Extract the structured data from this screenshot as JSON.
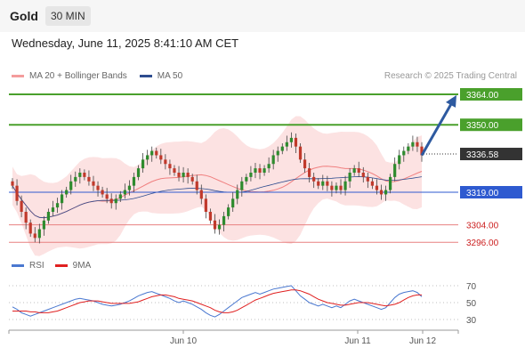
{
  "header": {
    "asset": "Gold",
    "timeframe": "30 MIN"
  },
  "datetime": "Wednesday, June 11, 2025 8:41:10 AM CET",
  "legend": {
    "ma20": {
      "label": "MA 20 + Bollinger Bands",
      "color": "#f08080"
    },
    "ma50": {
      "label": "MA 50",
      "color": "#2e4d8f"
    }
  },
  "credit": "Research © 2025 Trading Central",
  "rsi_legend": {
    "rsi": {
      "label": "RSI",
      "color": "#4a78d0"
    },
    "ma9": {
      "label": "9MA",
      "color": "#e02020"
    }
  },
  "chart_data": {
    "type": "candlestick",
    "y_range": [
      3290,
      3370
    ],
    "x_ticks": [
      "Jun 10",
      "Jun 11",
      "Jun 12"
    ],
    "current_price": "3336.58",
    "levels": [
      {
        "value": 3364.0,
        "label": "3364.00",
        "style": "resistance-green"
      },
      {
        "value": 3350.0,
        "label": "3350.00",
        "style": "resistance-green"
      },
      {
        "value": 3336.58,
        "label": "3336.58",
        "style": "current-dark"
      },
      {
        "value": 3319.0,
        "label": "3319.00",
        "style": "pivot-blue"
      },
      {
        "value": 3304.0,
        "label": "3304.00",
        "style": "support-red"
      },
      {
        "value": 3296.0,
        "label": "3296.00",
        "style": "support-red"
      }
    ],
    "closes": [
      3322,
      3315,
      3310,
      3305,
      3300,
      3298,
      3302,
      3306,
      3310,
      3312,
      3314,
      3318,
      3320,
      3324,
      3326,
      3328,
      3326,
      3324,
      3322,
      3320,
      3318,
      3316,
      3314,
      3316,
      3318,
      3320,
      3322,
      3326,
      3330,
      3334,
      3336,
      3338,
      3336,
      3334,
      3332,
      3330,
      3328,
      3326,
      3328,
      3326,
      3324,
      3320,
      3316,
      3310,
      3306,
      3302,
      3304,
      3308,
      3312,
      3316,
      3320,
      3324,
      3326,
      3328,
      3330,
      3328,
      3330,
      3332,
      3336,
      3338,
      3340,
      3342,
      3344,
      3340,
      3334,
      3330,
      3326,
      3324,
      3322,
      3324,
      3322,
      3320,
      3322,
      3320,
      3324,
      3328,
      3330,
      3328,
      3326,
      3324,
      3322,
      3320,
      3318,
      3320,
      3326,
      3332,
      3336,
      3338,
      3340,
      3342,
      3340,
      3336
    ],
    "rsi": {
      "levels": [
        70,
        50,
        30
      ],
      "range": [
        20,
        80
      ],
      "rsi": [
        45,
        42,
        38,
        36,
        34,
        36,
        38,
        40,
        42,
        44,
        46,
        48,
        50,
        52,
        54,
        55,
        54,
        53,
        52,
        50,
        48,
        47,
        46,
        47,
        48,
        50,
        52,
        55,
        58,
        60,
        62,
        63,
        61,
        59,
        57,
        55,
        52,
        50,
        52,
        50,
        48,
        45,
        42,
        38,
        35,
        33,
        36,
        40,
        44,
        48,
        52,
        56,
        58,
        60,
        62,
        60,
        62,
        64,
        66,
        67,
        68,
        69,
        70,
        64,
        58,
        54,
        50,
        48,
        46,
        48,
        46,
        44,
        46,
        44,
        48,
        52,
        54,
        52,
        50,
        48,
        46,
        44,
        42,
        44,
        50,
        56,
        60,
        62,
        63,
        64,
        62,
        57
      ],
      "ma9": [
        40,
        40,
        40,
        40,
        39,
        39,
        38,
        38,
        38,
        39,
        40,
        42,
        44,
        46,
        48,
        50,
        51,
        52,
        52,
        52,
        51,
        50,
        49,
        49,
        49,
        49,
        49,
        50,
        51,
        53,
        55,
        57,
        58,
        59,
        59,
        58,
        57,
        55,
        54,
        53,
        52,
        50,
        48,
        46,
        44,
        41,
        39,
        38,
        38,
        39,
        41,
        44,
        47,
        50,
        53,
        55,
        57,
        59,
        61,
        62,
        63,
        64,
        65,
        65,
        64,
        62,
        60,
        57,
        54,
        52,
        50,
        49,
        48,
        47,
        47,
        48,
        49,
        50,
        50,
        50,
        49,
        48,
        47,
        46,
        47,
        48,
        50,
        53,
        56,
        58,
        59,
        59
      ]
    }
  }
}
